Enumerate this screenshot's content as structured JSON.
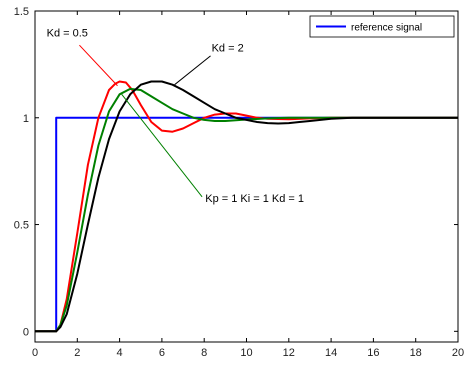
{
  "chart_data": {
    "type": "line",
    "title": "",
    "xlabel": "",
    "ylabel": "",
    "xlim": [
      0,
      20
    ],
    "ylim": [
      -0.05,
      1.5
    ],
    "x_ticks": [
      0,
      2,
      4,
      6,
      8,
      10,
      12,
      14,
      16,
      18,
      20
    ],
    "y_ticks": [
      0,
      0.5,
      1,
      1.5
    ],
    "y_tick_labels": [
      "0",
      "0.5",
      "1",
      "1.5"
    ],
    "grid": false,
    "legend": {
      "placement": "top-right",
      "entries": [
        {
          "label": "reference signal",
          "color": "#0000ff"
        }
      ]
    },
    "series": [
      {
        "name": "reference signal",
        "color": "#0000ff",
        "x": [
          0,
          1,
          1,
          20
        ],
        "y": [
          0,
          0,
          1,
          1
        ]
      },
      {
        "name": "Kd = 0.5",
        "color": "#ff0000",
        "x": [
          0,
          1,
          1.2,
          1.5,
          2,
          2.5,
          3,
          3.5,
          3.8,
          4,
          4.3,
          4.6,
          5,
          5.5,
          6,
          6.5,
          7,
          7.5,
          8,
          8.5,
          9,
          9.5,
          10,
          10.5,
          11,
          12,
          13,
          14,
          16,
          20
        ],
        "y": [
          0,
          0,
          0.03,
          0.15,
          0.46,
          0.78,
          1.0,
          1.13,
          1.16,
          1.17,
          1.165,
          1.13,
          1.06,
          0.98,
          0.94,
          0.935,
          0.95,
          0.975,
          1.0,
          1.015,
          1.02,
          1.02,
          1.01,
          1.0,
          0.995,
          0.993,
          0.997,
          1.0,
          1.0,
          1.0
        ]
      },
      {
        "name": "Kp = 1  Ki = 1  Kd = 1",
        "color": "#008000",
        "x": [
          0,
          1,
          1.2,
          1.5,
          2,
          2.5,
          3,
          3.5,
          4,
          4.5,
          5,
          5.5,
          6,
          6.5,
          7,
          7.5,
          8,
          8.5,
          9,
          9.5,
          10,
          11,
          12,
          13,
          14,
          16,
          20
        ],
        "y": [
          0,
          0,
          0.03,
          0.12,
          0.37,
          0.64,
          0.87,
          1.03,
          1.11,
          1.135,
          1.13,
          1.1,
          1.07,
          1.04,
          1.02,
          1.0,
          0.99,
          0.985,
          0.985,
          0.988,
          0.992,
          0.997,
          1.0,
          1.0,
          1.0,
          1.0,
          1.0
        ]
      },
      {
        "name": "Kd = 2",
        "color": "#000000",
        "x": [
          0,
          1,
          1.2,
          1.5,
          2,
          2.5,
          3,
          3.5,
          4,
          4.5,
          5,
          5.5,
          6,
          6.5,
          7,
          7.5,
          8,
          8.5,
          9,
          9.5,
          10,
          10.5,
          11,
          11.5,
          12,
          12.5,
          13,
          14,
          15,
          16,
          20
        ],
        "y": [
          0,
          0,
          0.02,
          0.08,
          0.27,
          0.5,
          0.72,
          0.9,
          1.03,
          1.11,
          1.155,
          1.17,
          1.17,
          1.155,
          1.13,
          1.1,
          1.07,
          1.04,
          1.02,
          1.0,
          0.99,
          0.98,
          0.975,
          0.973,
          0.975,
          0.98,
          0.985,
          0.995,
          1.0,
          1.0,
          1.0
        ]
      }
    ],
    "annotations": [
      {
        "id": "anno-kd05",
        "text": "Kd = 0.5",
        "color": "#ff0000",
        "text_x": 0.55,
        "text_y": 1.38,
        "line_from": [
          2.1,
          1.34
        ],
        "line_to": [
          3.9,
          1.15
        ]
      },
      {
        "id": "anno-kd2",
        "text": "Kd = 2",
        "color": "#000000",
        "text_x": 8.35,
        "text_y": 1.31,
        "line_from": [
          8.3,
          1.29
        ],
        "line_to": [
          6.6,
          1.155
        ]
      },
      {
        "id": "anno-kp1",
        "text": "Kp = 1  Ki = 1  Kd = 1",
        "color": "#008000",
        "text_x": 8.05,
        "text_y": 0.605,
        "line_from": [
          7.9,
          0.63
        ],
        "line_to": [
          4.1,
          1.11
        ]
      }
    ]
  }
}
